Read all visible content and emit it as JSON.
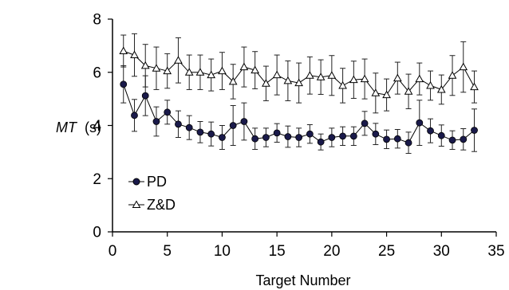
{
  "chart_data": {
    "type": "line",
    "title": "",
    "xlabel": "Target Number",
    "ylabel_italic": "MT",
    "ylabel_unit": "(s)",
    "xlim": [
      0,
      35
    ],
    "ylim": [
      0,
      8
    ],
    "xticks": [
      0,
      5,
      10,
      15,
      20,
      25,
      30,
      35
    ],
    "yticks": [
      0,
      2,
      4,
      6,
      8
    ],
    "grid": false,
    "legend_position": "bottom-left",
    "x": [
      1,
      2,
      3,
      4,
      5,
      6,
      7,
      8,
      9,
      10,
      11,
      12,
      13,
      14,
      15,
      16,
      17,
      18,
      19,
      20,
      21,
      22,
      23,
      24,
      25,
      26,
      27,
      28,
      29,
      30,
      31,
      32,
      33
    ],
    "series": [
      {
        "name": "PD",
        "marker": "filled-circle",
        "color": "#1a1a4a",
        "values": [
          5.55,
          4.38,
          5.12,
          4.15,
          4.5,
          4.05,
          3.92,
          3.75,
          3.68,
          3.55,
          4.0,
          4.15,
          3.5,
          3.55,
          3.72,
          3.58,
          3.55,
          3.68,
          3.38,
          3.55,
          3.6,
          3.6,
          4.08,
          3.68,
          3.48,
          3.5,
          3.35,
          4.1,
          3.8,
          3.62,
          3.45,
          3.48,
          3.82
        ],
        "errors": [
          0.7,
          0.6,
          0.75,
          0.55,
          0.45,
          0.5,
          0.45,
          0.4,
          0.45,
          0.45,
          0.75,
          0.7,
          0.4,
          0.35,
          0.35,
          0.4,
          0.35,
          0.35,
          0.3,
          0.35,
          0.35,
          0.35,
          0.45,
          0.4,
          0.35,
          0.35,
          0.4,
          0.85,
          0.45,
          0.4,
          0.35,
          0.4,
          0.8
        ]
      },
      {
        "name": "Z&D",
        "marker": "open-triangle",
        "color": "#000000",
        "values": [
          6.8,
          6.65,
          6.25,
          6.15,
          6.05,
          6.45,
          6.0,
          6.0,
          5.9,
          6.05,
          5.65,
          6.2,
          6.08,
          5.58,
          5.9,
          5.68,
          5.6,
          5.88,
          5.82,
          5.88,
          5.5,
          5.72,
          5.75,
          5.22,
          5.15,
          5.78,
          5.28,
          5.75,
          5.5,
          5.35,
          5.88,
          6.2,
          5.45
        ],
        "errors": [
          0.6,
          0.8,
          0.8,
          0.8,
          0.65,
          0.85,
          0.65,
          0.65,
          0.6,
          0.7,
          0.65,
          0.75,
          0.7,
          0.65,
          0.75,
          0.75,
          0.75,
          0.7,
          0.65,
          0.75,
          0.65,
          0.7,
          0.75,
          0.75,
          0.6,
          0.6,
          0.65,
          0.6,
          0.55,
          0.55,
          0.75,
          0.95,
          0.6
        ]
      }
    ]
  }
}
